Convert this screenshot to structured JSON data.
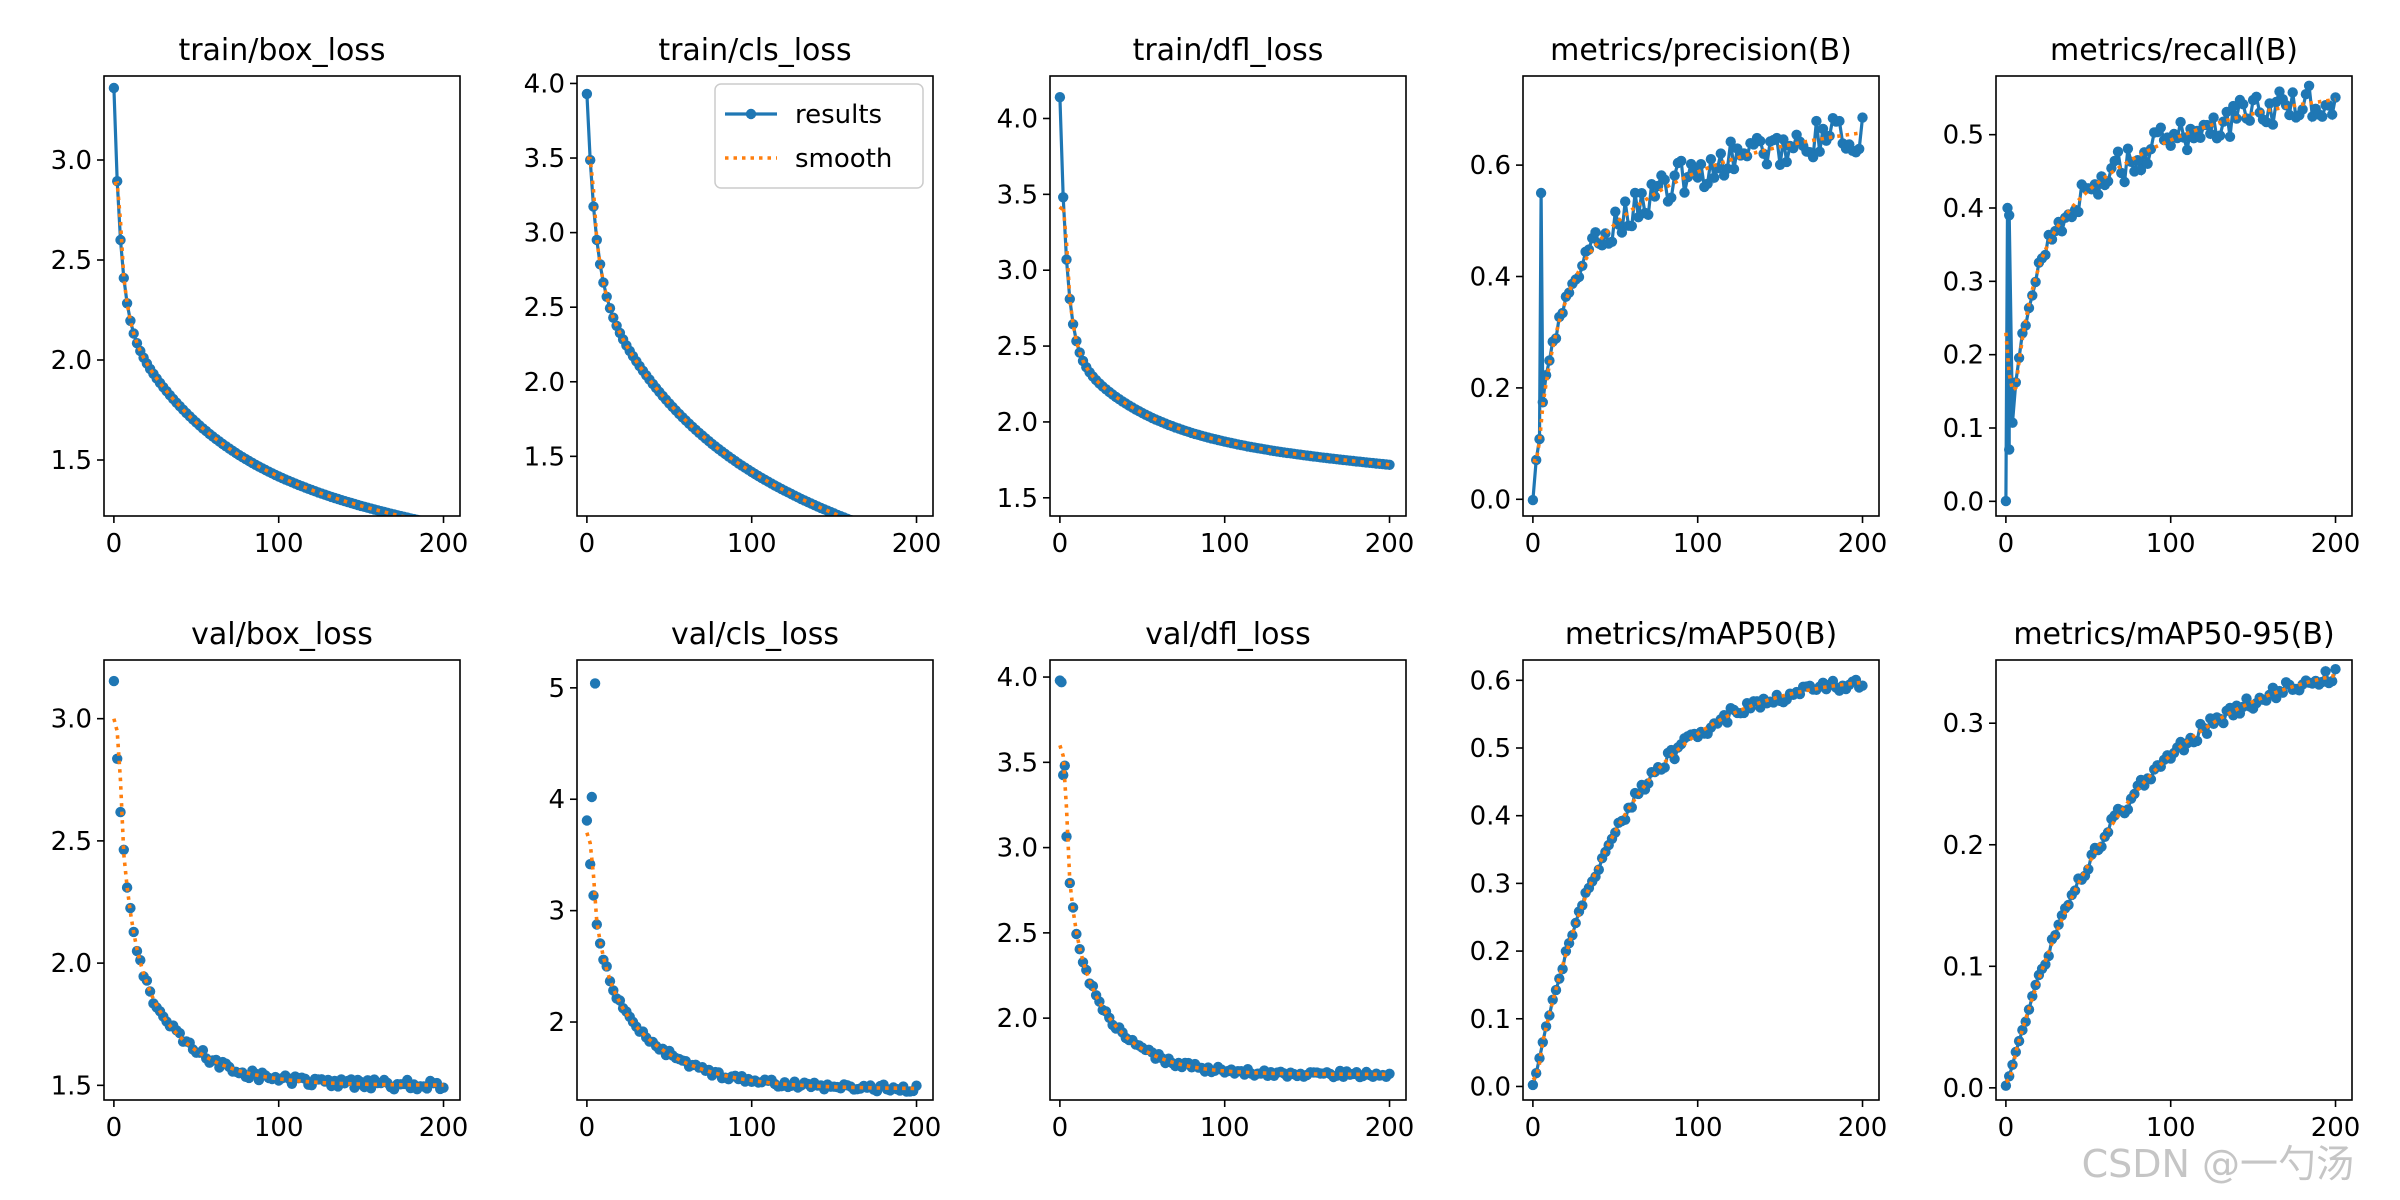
{
  "figure": {
    "watermark": "CSDN @一勺汤",
    "colors": {
      "results": "#1f77b4",
      "smooth": "#ff7f0e",
      "axis": "#000000"
    },
    "legend": {
      "labels": [
        "results",
        "smooth"
      ],
      "location": "top-right",
      "panel": "train/cls_loss"
    }
  },
  "chart_data": [
    {
      "title": "train/box_loss",
      "type": "line",
      "xlim": [
        -6,
        210
      ],
      "ylim": [
        1.22,
        3.42
      ],
      "xticks": [
        0,
        100,
        200
      ],
      "yticks": [
        1.5,
        2.0,
        2.5,
        3.0
      ],
      "ytick_labels": [
        "1.5",
        "2.0",
        "2.5",
        "3.0"
      ],
      "curve": {
        "kind": "decay",
        "start": 3.36,
        "a": 1.1,
        "b": 0.85,
        "tau": 4,
        "tau2": 55,
        "d": -0.0013
      },
      "results_line": true,
      "smooth_start": 2.88
    },
    {
      "title": "train/cls_loss",
      "type": "line",
      "xlim": [
        -6,
        210
      ],
      "ylim": [
        1.1,
        4.05
      ],
      "xticks": [
        0,
        100,
        200
      ],
      "yticks": [
        1.5,
        2.0,
        2.5,
        3.0,
        3.5,
        4.0
      ],
      "ytick_labels": [
        "1.5",
        "2.0",
        "2.5",
        "3.0",
        "3.5",
        "4.0"
      ],
      "curve": {
        "kind": "decay",
        "start": 3.93,
        "a": 1.2,
        "b": 1.3,
        "tau": 5,
        "tau2": 60,
        "d": -0.0028
      },
      "results_line": true,
      "smooth_start": 3.5
    },
    {
      "title": "train/dfl_loss",
      "type": "line",
      "xlim": [
        -6,
        210
      ],
      "ylim": [
        1.38,
        4.28
      ],
      "xticks": [
        0,
        100,
        200
      ],
      "yticks": [
        1.5,
        2.0,
        2.5,
        3.0,
        3.5,
        4.0
      ],
      "ytick_labels": [
        "1.5",
        "2.0",
        "2.5",
        "3.0",
        "3.5",
        "4.0"
      ],
      "curve": {
        "kind": "decay",
        "start": 4.14,
        "a": 1.6,
        "b": 0.65,
        "tau": 4,
        "tau2": 45,
        "d": -0.0009
      },
      "results_line": true,
      "smooth_start": 3.4
    },
    {
      "title": "metrics/precision(B)",
      "type": "line",
      "xlim": [
        -6,
        210
      ],
      "ylim": [
        -0.03,
        0.76
      ],
      "xticks": [
        0,
        100,
        200
      ],
      "yticks": [
        0.0,
        0.2,
        0.4,
        0.6
      ],
      "ytick_labels": [
        "0.0",
        "0.2",
        "0.4",
        "0.6"
      ],
      "curve": {
        "kind": "growth",
        "start": 0.0,
        "a": 0.3,
        "b": 0.33,
        "tau": 10,
        "tau2": 60,
        "d": 0.0002
      },
      "results_line": true,
      "noise": 0.035,
      "spikes": [
        [
          5,
          0.55
        ]
      ],
      "smooth_start": 0.07
    },
    {
      "title": "metrics/recall(B)",
      "type": "line",
      "xlim": [
        -6,
        210
      ],
      "ylim": [
        -0.02,
        0.58
      ],
      "xticks": [
        0,
        100,
        200
      ],
      "yticks": [
        0.0,
        0.1,
        0.2,
        0.3,
        0.4,
        0.5
      ],
      "ytick_labels": [
        "0.0",
        "0.1",
        "0.2",
        "0.3",
        "0.4",
        "0.5"
      ],
      "curve": {
        "kind": "growth",
        "start": 0.0,
        "a": 0.3,
        "b": 0.27,
        "tau": 10,
        "tau2": 80,
        "d": 0.0
      },
      "results_line": true,
      "noise": 0.025,
      "spikes": [
        [
          1,
          0.4
        ],
        [
          2,
          0.39
        ]
      ],
      "smooth_start": 0.23
    },
    {
      "title": "val/box_loss",
      "type": "scatter",
      "xlim": [
        -6,
        210
      ],
      "ylim": [
        1.44,
        3.24
      ],
      "xticks": [
        0,
        100,
        200
      ],
      "yticks": [
        1.5,
        2.0,
        2.5,
        3.0
      ],
      "ytick_labels": [
        "1.5",
        "2.0",
        "2.5",
        "3.0"
      ],
      "curve": {
        "kind": "decay",
        "start": 3.15,
        "a": 0.9,
        "b": 0.75,
        "tau": 6,
        "tau2": 30,
        "d": 0.0
      },
      "results_line": false,
      "noise": 0.02,
      "smooth_start": 3.0
    },
    {
      "title": "val/cls_loss",
      "type": "scatter",
      "xlim": [
        -6,
        210
      ],
      "ylim": [
        1.3,
        5.25
      ],
      "xticks": [
        0,
        100,
        200
      ],
      "yticks": [
        2,
        3,
        4,
        5
      ],
      "ytick_labels": [
        "2",
        "3",
        "4",
        "5"
      ],
      "curve": {
        "kind": "decay",
        "start": 3.8,
        "a": 1.1,
        "b": 1.3,
        "tau": 6,
        "tau2": 35,
        "d": 0.0
      },
      "results_line": false,
      "noise": 0.03,
      "spikes": [
        [
          5,
          5.04
        ],
        [
          3,
          4.02
        ]
      ],
      "smooth_start": 3.7
    },
    {
      "title": "val/dfl_loss",
      "type": "scatter",
      "xlim": [
        -6,
        210
      ],
      "ylim": [
        1.52,
        4.1
      ],
      "xticks": [
        0,
        100,
        200
      ],
      "yticks": [
        2.0,
        2.5,
        3.0,
        3.5,
        4.0
      ],
      "ytick_labels": [
        "2.0",
        "2.5",
        "3.0",
        "3.5",
        "4.0"
      ],
      "curve": {
        "kind": "decay",
        "start": 3.97,
        "a": 1.2,
        "b": 1.1,
        "tau": 4,
        "tau2": 25,
        "d": 0.0
      },
      "results_line": false,
      "noise": 0.02,
      "spikes": [
        [
          1,
          3.97
        ],
        [
          3,
          3.48
        ]
      ],
      "smooth_start": 3.6
    },
    {
      "title": "metrics/mAP50(B)",
      "type": "line",
      "xlim": [
        -6,
        210
      ],
      "ylim": [
        -0.02,
        0.63
      ],
      "xticks": [
        0,
        100,
        200
      ],
      "yticks": [
        0.0,
        0.1,
        0.2,
        0.3,
        0.4,
        0.5,
        0.6
      ],
      "ytick_labels": [
        "0.0",
        "0.1",
        "0.2",
        "0.3",
        "0.4",
        "0.5",
        "0.6"
      ],
      "curve": {
        "kind": "growth",
        "start": 0.0,
        "a": 0.0,
        "b": 0.61,
        "tau": 10,
        "tau2": 52,
        "d": 0.0
      },
      "results_line": true,
      "noise": 0.01,
      "smooth_start": 0.01
    },
    {
      "title": "metrics/mAP50-95(B)",
      "type": "line",
      "xlim": [
        -6,
        210
      ],
      "ylim": [
        -0.01,
        0.352
      ],
      "xticks": [
        0,
        100,
        200
      ],
      "yticks": [
        0.0,
        0.1,
        0.2,
        0.3
      ],
      "ytick_labels": [
        "0.0",
        "0.1",
        "0.2",
        "0.3"
      ],
      "curve": {
        "kind": "growth",
        "start": 0.0,
        "a": 0.0,
        "b": 0.36,
        "tau": 10,
        "tau2": 70,
        "d": 0.0
      },
      "results_line": true,
      "noise": 0.006,
      "smooth_start": 0.005
    }
  ]
}
